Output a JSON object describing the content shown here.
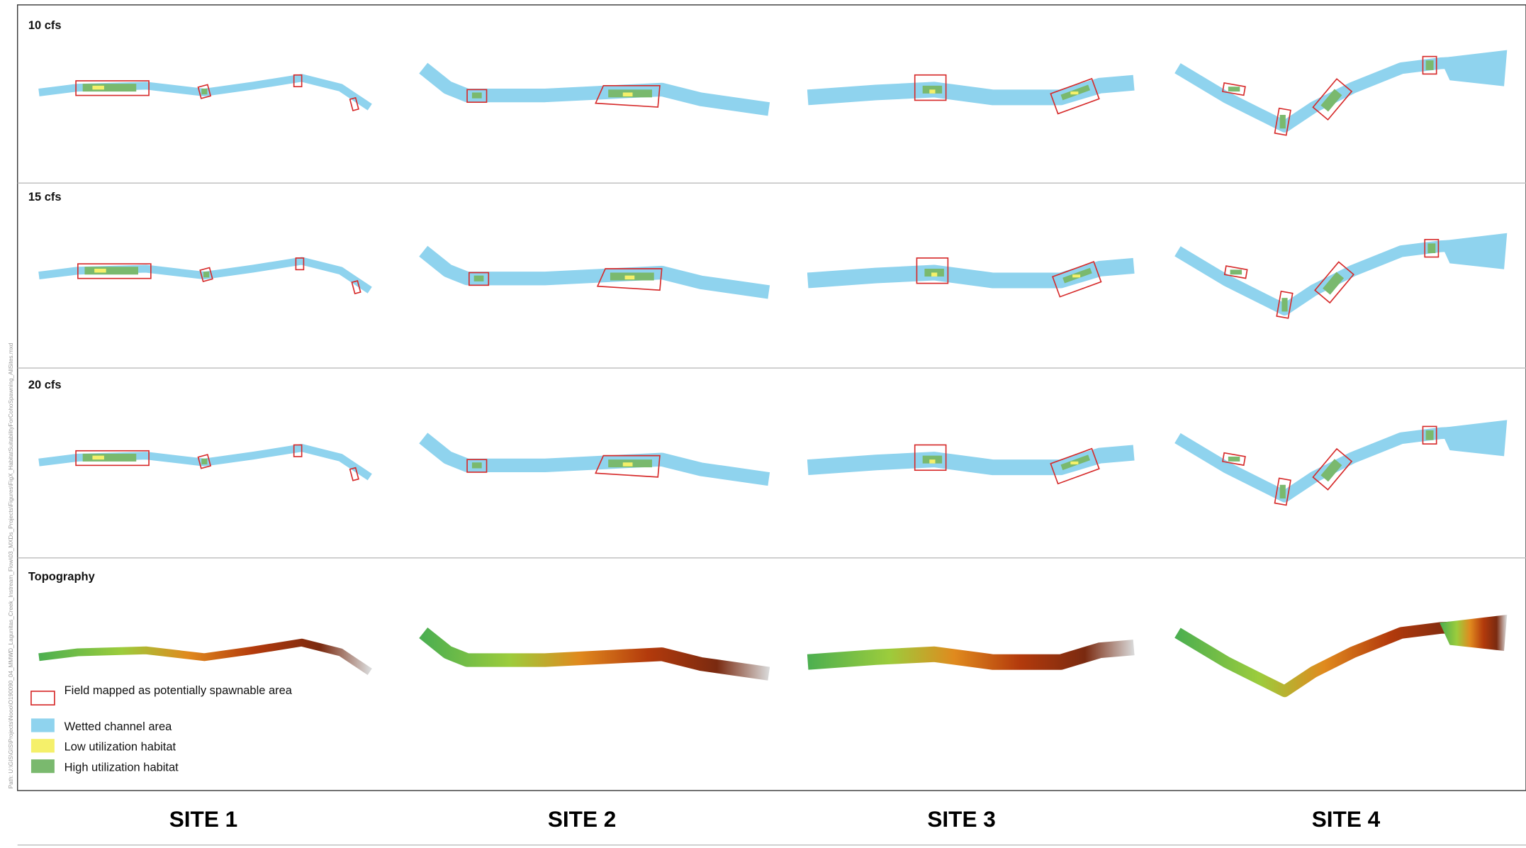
{
  "panels": [
    {
      "label": "10 cfs"
    },
    {
      "label": "15 cfs"
    },
    {
      "label": "20 cfs"
    },
    {
      "label": "Topography"
    }
  ],
  "legend": [
    {
      "label": "Field mapped as potentially spawnable area"
    },
    {
      "label": "Wetted channel area"
    },
    {
      "label": "Low utilization habitat"
    },
    {
      "label": "High utilization habitat"
    }
  ],
  "sites": [
    "SITE 1",
    "SITE 2",
    "SITE 3",
    "SITE 4"
  ],
  "path_note": "Path: U:\\GIS\\GIS\\Projects\\Nooo\\O190090_04_MMWD_Lagunitas_Creek_Instream_Flow\\03_MXDs_Projects\\Figures\\FigX_HabitatSuitabilityForCohoSpawning_AllSites.mxd"
}
